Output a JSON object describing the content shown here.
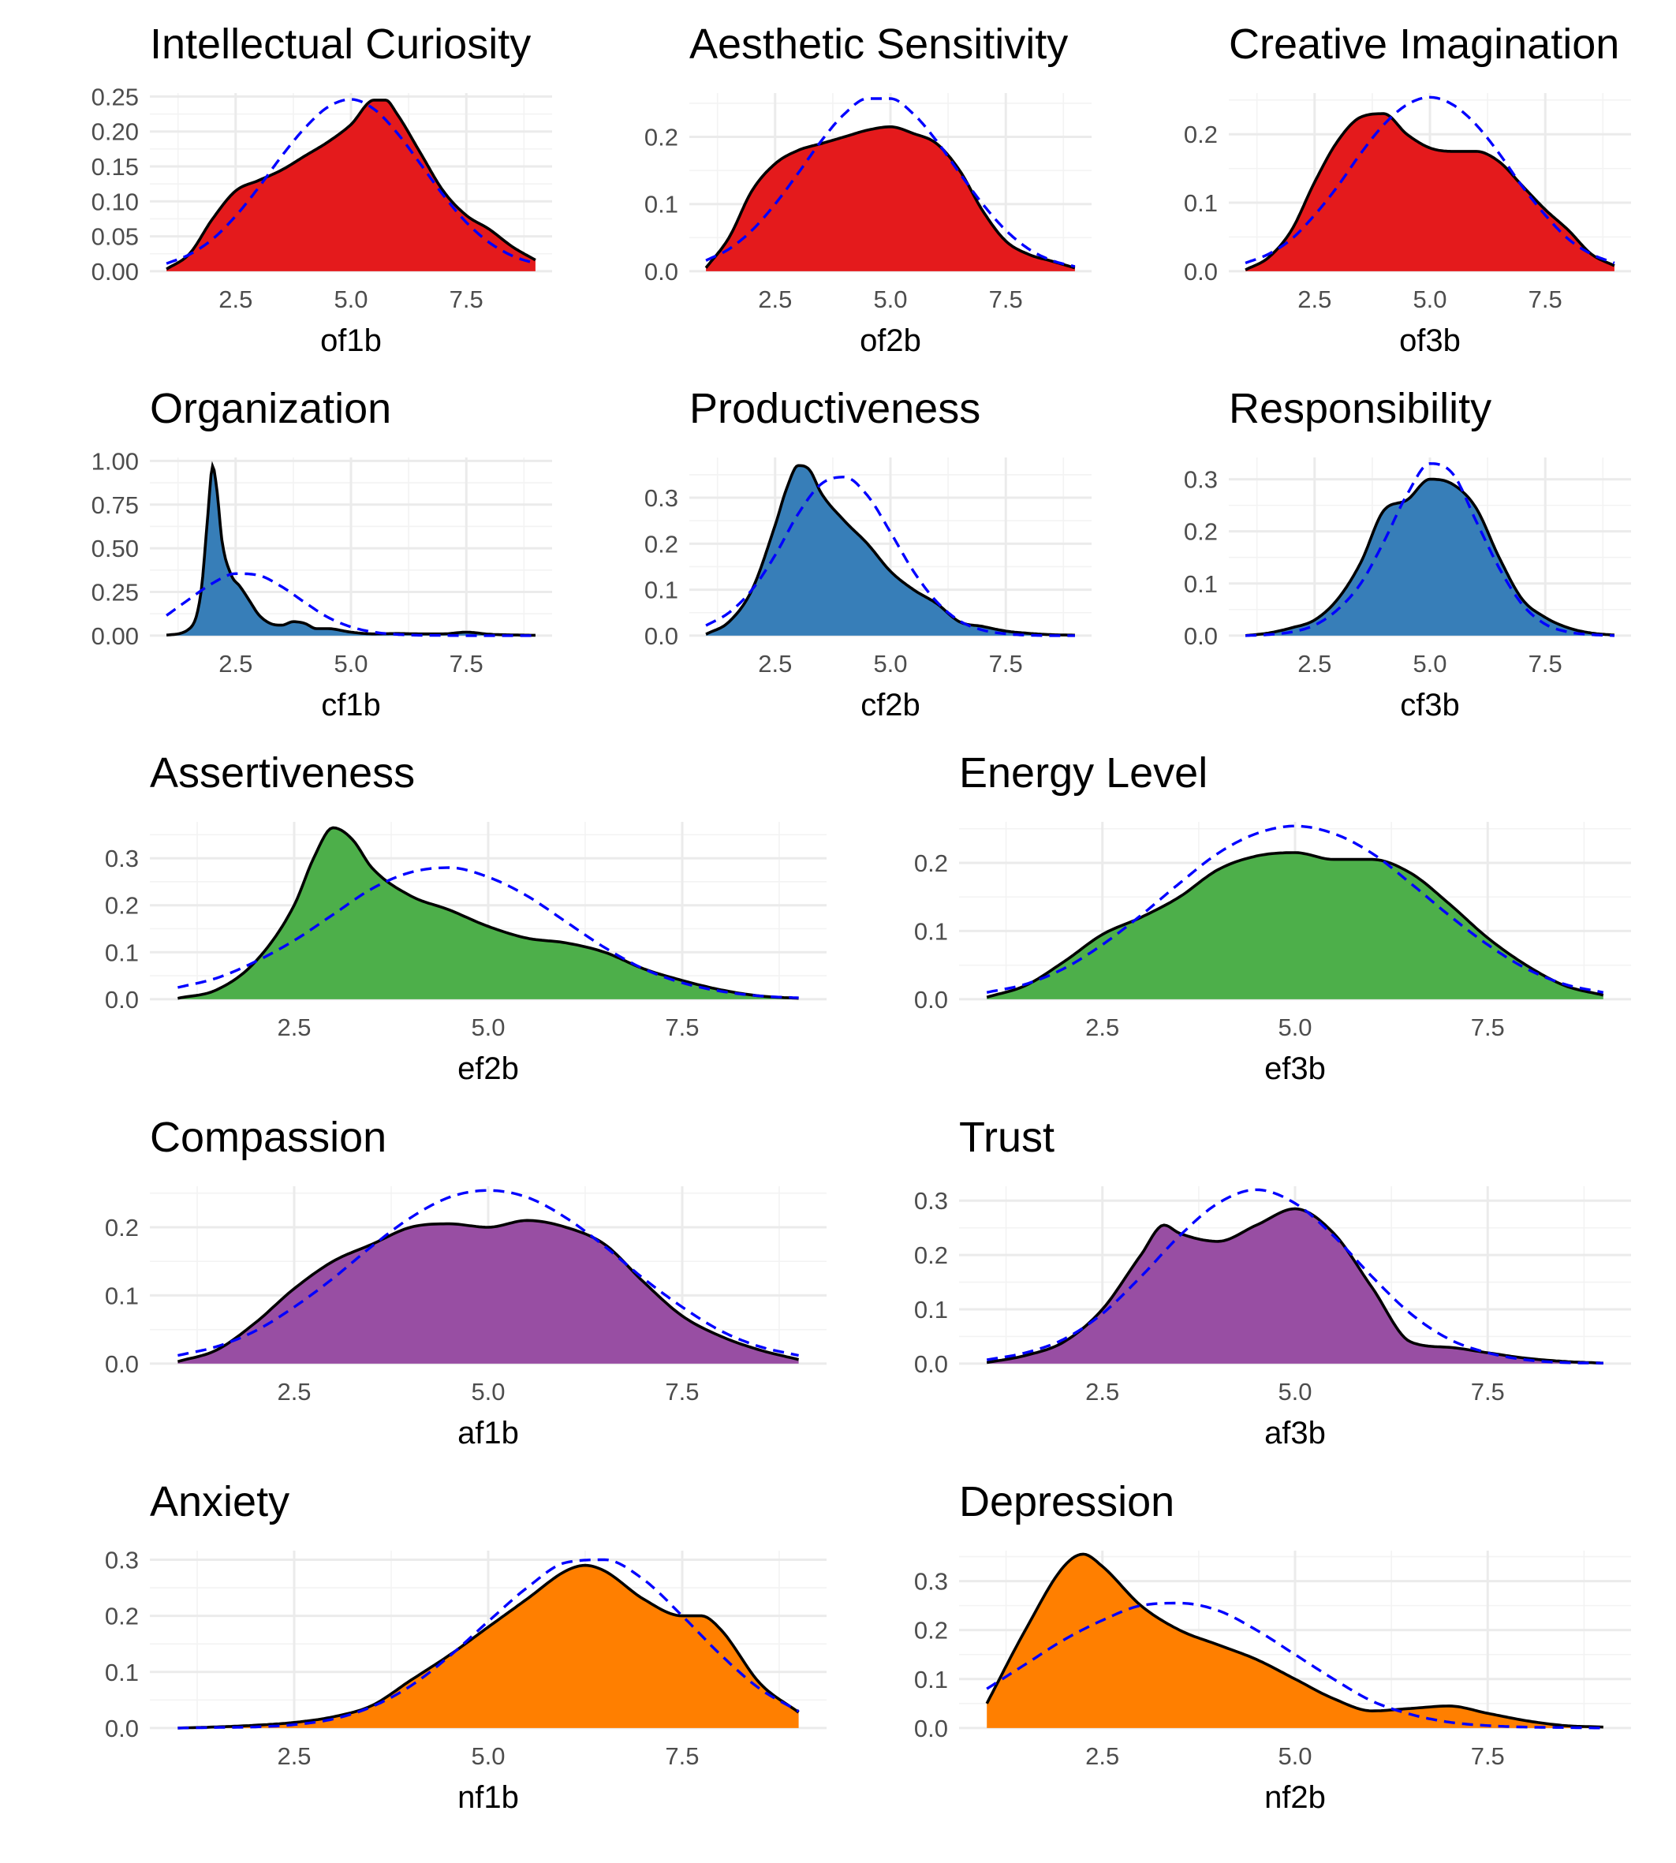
{
  "colors": {
    "openness": "#e41a1c",
    "conscientiousness": "#377eb8",
    "extraversion": "#4daf4a",
    "agreeableness": "#984ea3",
    "neuroticism": "#ff7f00",
    "density_line": "#000000",
    "normal_curve": "#0000ff"
  },
  "chart_data": [
    {
      "type": "area",
      "title": "Intellectual Curiosity",
      "xlabel": "of1b",
      "fill_color": "#e41a1c",
      "xlim": [
        1,
        9
      ],
      "ylim": [
        0,
        0.25
      ],
      "x_ticks": [
        "2.5",
        "5.0",
        "7.5"
      ],
      "y_ticks": [
        "0.00",
        "0.05",
        "0.10",
        "0.15",
        "0.20",
        "0.25"
      ],
      "density": {
        "x": [
          1,
          1.5,
          2,
          2.5,
          3,
          3.5,
          4,
          4.5,
          5,
          5.5,
          5.75,
          6,
          6.5,
          7,
          7.5,
          8,
          8.5,
          9
        ],
        "y": [
          0.003,
          0.025,
          0.075,
          0.115,
          0.13,
          0.145,
          0.165,
          0.185,
          0.21,
          0.245,
          0.245,
          0.225,
          0.17,
          0.115,
          0.08,
          0.06,
          0.035,
          0.016
        ]
      },
      "normal": {
        "x": [
          1,
          1.5,
          2,
          2.5,
          3,
          3.5,
          4,
          4.5,
          5,
          5.5,
          6,
          6.5,
          7,
          7.5,
          8,
          8.5,
          9
        ],
        "y": [
          0.011,
          0.024,
          0.046,
          0.079,
          0.12,
          0.165,
          0.205,
          0.235,
          0.246,
          0.232,
          0.198,
          0.154,
          0.109,
          0.07,
          0.041,
          0.022,
          0.011
        ]
      }
    },
    {
      "type": "area",
      "title": "Aesthetic Sensitivity",
      "xlabel": "of2b",
      "fill_color": "#e41a1c",
      "xlim": [
        1,
        9
      ],
      "ylim": [
        0,
        0.26
      ],
      "x_ticks": [
        "2.5",
        "5.0",
        "7.5"
      ],
      "y_ticks": [
        "0.0",
        "0.1",
        "0.2"
      ],
      "density": {
        "x": [
          1,
          1.5,
          2,
          2.5,
          3,
          3.5,
          4,
          4.5,
          5,
          5.5,
          6,
          6.5,
          7,
          7.5,
          8,
          8.5,
          9
        ],
        "y": [
          0.005,
          0.05,
          0.12,
          0.16,
          0.18,
          0.19,
          0.2,
          0.21,
          0.215,
          0.205,
          0.19,
          0.15,
          0.09,
          0.045,
          0.025,
          0.015,
          0.005
        ]
      },
      "normal": {
        "x": [
          1,
          1.5,
          2,
          2.5,
          3,
          3.5,
          4,
          4.5,
          5,
          5.5,
          6,
          6.5,
          7,
          7.5,
          8,
          8.5,
          9
        ],
        "y": [
          0.016,
          0.033,
          0.061,
          0.1,
          0.146,
          0.194,
          0.234,
          0.257,
          0.257,
          0.234,
          0.194,
          0.146,
          0.1,
          0.061,
          0.033,
          0.016,
          0.007
        ]
      }
    },
    {
      "type": "area",
      "title": "Creative Imagination",
      "xlabel": "of3b",
      "fill_color": "#e41a1c",
      "xlim": [
        1,
        9
      ],
      "ylim": [
        0,
        0.255
      ],
      "x_ticks": [
        "2.5",
        "5.0",
        "7.5"
      ],
      "y_ticks": [
        "0.0",
        "0.1",
        "0.2"
      ],
      "density": {
        "x": [
          1,
          1.5,
          2,
          2.5,
          3,
          3.5,
          4,
          4.5,
          5,
          5.5,
          6,
          6.5,
          7,
          7.5,
          8,
          8.5,
          9
        ],
        "y": [
          0.002,
          0.02,
          0.06,
          0.13,
          0.19,
          0.225,
          0.23,
          0.2,
          0.18,
          0.175,
          0.175,
          0.16,
          0.125,
          0.09,
          0.06,
          0.025,
          0.008
        ]
      },
      "normal": {
        "x": [
          1,
          1.5,
          2,
          2.5,
          3,
          3.5,
          4,
          4.5,
          5,
          5.5,
          6,
          6.5,
          7,
          7.5,
          8,
          8.5,
          9
        ],
        "y": [
          0.012,
          0.025,
          0.047,
          0.082,
          0.124,
          0.172,
          0.214,
          0.243,
          0.254,
          0.243,
          0.214,
          0.172,
          0.124,
          0.082,
          0.047,
          0.025,
          0.012
        ]
      }
    },
    {
      "type": "area",
      "title": "Organization",
      "xlabel": "cf1b",
      "fill_color": "#377eb8",
      "xlim": [
        1,
        9
      ],
      "ylim": [
        0,
        1.0
      ],
      "x_ticks": [
        "2.5",
        "5.0",
        "7.5"
      ],
      "y_ticks": [
        "0.00",
        "0.25",
        "0.50",
        "0.75",
        "1.00"
      ],
      "density": {
        "x": [
          1,
          1.5,
          1.75,
          1.9,
          2,
          2.1,
          2.2,
          2.4,
          2.6,
          2.8,
          3,
          3.25,
          3.5,
          3.75,
          4,
          4.25,
          4.5,
          5,
          5.5,
          6,
          6.5,
          7,
          7.5,
          8,
          8.5,
          9
        ],
        "y": [
          0.003,
          0.04,
          0.25,
          0.7,
          0.97,
          0.82,
          0.55,
          0.35,
          0.28,
          0.2,
          0.12,
          0.07,
          0.06,
          0.08,
          0.07,
          0.04,
          0.04,
          0.02,
          0.01,
          0.012,
          0.01,
          0.01,
          0.02,
          0.008,
          0.004,
          0.002
        ]
      },
      "normal": {
        "x": [
          1,
          1.5,
          2,
          2.5,
          3,
          3.5,
          4,
          4.5,
          5,
          5.5,
          6,
          6.5,
          7,
          7.5,
          8,
          8.5,
          9
        ],
        "y": [
          0.115,
          0.21,
          0.3,
          0.355,
          0.345,
          0.28,
          0.19,
          0.105,
          0.05,
          0.02,
          0.007,
          0.002,
          0.001,
          0,
          0,
          0,
          0
        ]
      }
    },
    {
      "type": "area",
      "title": "Productiveness",
      "xlabel": "cf2b",
      "fill_color": "#377eb8",
      "xlim": [
        1,
        9
      ],
      "ylim": [
        0,
        0.38
      ],
      "x_ticks": [
        "2.5",
        "5.0",
        "7.5"
      ],
      "y_ticks": [
        "0.0",
        "0.1",
        "0.2",
        "0.3"
      ],
      "density": {
        "x": [
          1,
          1.5,
          2,
          2.5,
          2.75,
          3,
          3.25,
          3.5,
          4,
          4.5,
          5,
          5.5,
          6,
          6.5,
          7,
          7.5,
          8,
          8.5,
          9
        ],
        "y": [
          0.003,
          0.03,
          0.1,
          0.24,
          0.32,
          0.37,
          0.36,
          0.31,
          0.25,
          0.2,
          0.14,
          0.1,
          0.07,
          0.03,
          0.02,
          0.01,
          0.005,
          0.002,
          0.001
        ]
      },
      "normal": {
        "x": [
          1,
          1.5,
          2,
          2.5,
          3,
          3.5,
          4,
          4.5,
          5,
          5.5,
          6,
          6.5,
          7,
          7.5,
          8,
          8.5,
          9
        ],
        "y": [
          0.022,
          0.05,
          0.1,
          0.175,
          0.265,
          0.33,
          0.345,
          0.305,
          0.225,
          0.14,
          0.074,
          0.032,
          0.012,
          0.004,
          0.001,
          0,
          0
        ]
      }
    },
    {
      "type": "area",
      "title": "Responsibility",
      "xlabel": "cf3b",
      "fill_color": "#377eb8",
      "xlim": [
        1,
        9
      ],
      "ylim": [
        0,
        0.335
      ],
      "x_ticks": [
        "2.5",
        "5.0",
        "7.5"
      ],
      "y_ticks": [
        "0.0",
        "0.1",
        "0.2",
        "0.3"
      ],
      "density": {
        "x": [
          1,
          1.5,
          2,
          2.5,
          3,
          3.5,
          4,
          4.5,
          5,
          5.5,
          6,
          6.5,
          7,
          7.5,
          8,
          8.5,
          9
        ],
        "y": [
          0.0,
          0.005,
          0.015,
          0.03,
          0.07,
          0.14,
          0.24,
          0.26,
          0.3,
          0.29,
          0.245,
          0.15,
          0.07,
          0.035,
          0.015,
          0.005,
          0.001
        ]
      },
      "normal": {
        "x": [
          1,
          1.5,
          2,
          2.5,
          3,
          3.5,
          4,
          4.5,
          5,
          5.5,
          6,
          6.5,
          7,
          7.5,
          8,
          8.5,
          9
        ],
        "y": [
          0.0,
          0.002,
          0.007,
          0.02,
          0.05,
          0.1,
          0.18,
          0.27,
          0.33,
          0.31,
          0.22,
          0.13,
          0.06,
          0.022,
          0.007,
          0.002,
          0.0
        ]
      }
    },
    {
      "type": "area",
      "title": "Assertiveness",
      "xlabel": "ef2b",
      "fill_color": "#4daf4a",
      "xlim": [
        1,
        9
      ],
      "ylim": [
        0,
        0.37
      ],
      "x_ticks": [
        "2.5",
        "5.0",
        "7.5"
      ],
      "y_ticks": [
        "0.0",
        "0.1",
        "0.2",
        "0.3"
      ],
      "density": {
        "x": [
          1,
          1.5,
          2,
          2.5,
          2.75,
          3,
          3.25,
          3.5,
          4,
          4.5,
          5,
          5.5,
          6,
          6.5,
          7,
          7.5,
          8,
          8.5,
          9
        ],
        "y": [
          0.002,
          0.02,
          0.08,
          0.2,
          0.3,
          0.365,
          0.34,
          0.28,
          0.22,
          0.19,
          0.155,
          0.13,
          0.12,
          0.1,
          0.065,
          0.04,
          0.02,
          0.007,
          0.002
        ]
      },
      "normal": {
        "x": [
          1,
          1.5,
          2,
          2.5,
          3,
          3.5,
          4,
          4.5,
          5,
          5.5,
          6,
          6.5,
          7,
          7.5,
          8,
          8.5,
          9
        ],
        "y": [
          0.025,
          0.045,
          0.08,
          0.125,
          0.18,
          0.235,
          0.27,
          0.28,
          0.26,
          0.22,
          0.165,
          0.11,
          0.065,
          0.035,
          0.017,
          0.007,
          0.003
        ]
      }
    },
    {
      "type": "area",
      "title": "Energy Level",
      "xlabel": "ef3b",
      "fill_color": "#4daf4a",
      "xlim": [
        1,
        9
      ],
      "ylim": [
        0,
        0.255
      ],
      "x_ticks": [
        "2.5",
        "5.0",
        "7.5"
      ],
      "y_ticks": [
        "0.0",
        "0.1",
        "0.2"
      ],
      "density": {
        "x": [
          1,
          1.5,
          2,
          2.5,
          3,
          3.5,
          4,
          4.5,
          5,
          5.5,
          6,
          6.5,
          7,
          7.5,
          8,
          8.5,
          9
        ],
        "y": [
          0.003,
          0.02,
          0.055,
          0.095,
          0.12,
          0.15,
          0.19,
          0.21,
          0.215,
          0.205,
          0.205,
          0.185,
          0.14,
          0.09,
          0.05,
          0.02,
          0.006
        ]
      },
      "normal": {
        "x": [
          1,
          1.5,
          2,
          2.5,
          3,
          3.5,
          4,
          4.5,
          5,
          5.5,
          6,
          6.5,
          7,
          7.5,
          8,
          8.5,
          9
        ],
        "y": [
          0.01,
          0.022,
          0.045,
          0.08,
          0.123,
          0.17,
          0.214,
          0.243,
          0.254,
          0.243,
          0.214,
          0.17,
          0.123,
          0.08,
          0.045,
          0.022,
          0.01
        ]
      }
    },
    {
      "type": "area",
      "title": "Compassion",
      "xlabel": "af1b",
      "fill_color": "#984ea3",
      "xlim": [
        1,
        9
      ],
      "ylim": [
        0,
        0.255
      ],
      "x_ticks": [
        "2.5",
        "5.0",
        "7.5"
      ],
      "y_ticks": [
        "0.0",
        "0.1",
        "0.2"
      ],
      "density": {
        "x": [
          1,
          1.5,
          2,
          2.5,
          3,
          3.5,
          4,
          4.5,
          5,
          5.5,
          6,
          6.5,
          7,
          7.5,
          8,
          8.5,
          9
        ],
        "y": [
          0.003,
          0.02,
          0.06,
          0.11,
          0.15,
          0.175,
          0.2,
          0.205,
          0.2,
          0.21,
          0.2,
          0.175,
          0.12,
          0.07,
          0.04,
          0.02,
          0.006
        ]
      },
      "normal": {
        "x": [
          1,
          1.5,
          2,
          2.5,
          3,
          3.5,
          4,
          4.5,
          5,
          5.5,
          6,
          6.5,
          7,
          7.5,
          8,
          8.5,
          9
        ],
        "y": [
          0.012,
          0.025,
          0.048,
          0.083,
          0.125,
          0.172,
          0.214,
          0.244,
          0.254,
          0.244,
          0.214,
          0.172,
          0.125,
          0.083,
          0.048,
          0.025,
          0.012
        ]
      }
    },
    {
      "type": "area",
      "title": "Trust",
      "xlabel": "af3b",
      "fill_color": "#984ea3",
      "xlim": [
        1,
        9
      ],
      "ylim": [
        0,
        0.32
      ],
      "x_ticks": [
        "2.5",
        "5.0",
        "7.5"
      ],
      "y_ticks": [
        "0.0",
        "0.1",
        "0.2",
        "0.3"
      ],
      "density": {
        "x": [
          1,
          1.5,
          2,
          2.5,
          3,
          3.3,
          3.5,
          4,
          4.5,
          5,
          5.5,
          6,
          6.5,
          7,
          7.5,
          8,
          8.5,
          9
        ],
        "y": [
          0.002,
          0.015,
          0.04,
          0.1,
          0.2,
          0.255,
          0.24,
          0.225,
          0.255,
          0.285,
          0.24,
          0.14,
          0.04,
          0.03,
          0.02,
          0.01,
          0.004,
          0.001
        ]
      },
      "normal": {
        "x": [
          1,
          1.5,
          2,
          2.5,
          3,
          3.5,
          4,
          4.5,
          5,
          5.5,
          6,
          6.5,
          7,
          7.5,
          8,
          8.5,
          9
        ],
        "y": [
          0.007,
          0.02,
          0.045,
          0.092,
          0.16,
          0.235,
          0.295,
          0.32,
          0.295,
          0.235,
          0.16,
          0.092,
          0.045,
          0.02,
          0.007,
          0.002,
          0.001
        ]
      }
    },
    {
      "type": "area",
      "title": "Anxiety",
      "xlabel": "nf1b",
      "fill_color": "#ff7f00",
      "xlim": [
        1,
        9
      ],
      "ylim": [
        0,
        0.31
      ],
      "x_ticks": [
        "2.5",
        "5.0",
        "7.5"
      ],
      "y_ticks": [
        "0.0",
        "0.1",
        "0.2",
        "0.3"
      ],
      "density": {
        "x": [
          1,
          1.5,
          2,
          2.5,
          3,
          3.5,
          4,
          4.5,
          5,
          5.5,
          6,
          6.25,
          6.5,
          7,
          7.5,
          7.75,
          8,
          8.5,
          9
        ],
        "y": [
          0.0,
          0.002,
          0.005,
          0.01,
          0.02,
          0.04,
          0.085,
          0.13,
          0.18,
          0.23,
          0.28,
          0.29,
          0.28,
          0.23,
          0.2,
          0.2,
          0.175,
          0.08,
          0.028
        ]
      },
      "normal": {
        "x": [
          1,
          1.5,
          2,
          2.5,
          3,
          3.5,
          4,
          4.5,
          5,
          5.5,
          6,
          6.5,
          7,
          7.5,
          8,
          8.5,
          9
        ],
        "y": [
          0.0,
          0.001,
          0.002,
          0.006,
          0.016,
          0.038,
          0.075,
          0.128,
          0.19,
          0.25,
          0.295,
          0.3,
          0.265,
          0.2,
          0.13,
          0.07,
          0.03
        ]
      }
    },
    {
      "type": "area",
      "title": "Depression",
      "xlabel": "nf2b",
      "fill_color": "#ff7f00",
      "xlim": [
        1,
        9
      ],
      "ylim": [
        0,
        0.355
      ],
      "x_ticks": [
        "2.5",
        "5.0",
        "7.5"
      ],
      "y_ticks": [
        "0.0",
        "0.1",
        "0.2",
        "0.3"
      ],
      "density": {
        "x": [
          1,
          1.5,
          2,
          2.25,
          2.5,
          3,
          3.5,
          4,
          4.5,
          5,
          5.5,
          6,
          6.5,
          7,
          7.5,
          8,
          8.5,
          9
        ],
        "y": [
          0.05,
          0.2,
          0.33,
          0.355,
          0.33,
          0.25,
          0.2,
          0.17,
          0.14,
          0.1,
          0.06,
          0.035,
          0.04,
          0.045,
          0.03,
          0.015,
          0.005,
          0.002
        ]
      },
      "normal": {
        "x": [
          1,
          1.5,
          2,
          2.5,
          3,
          3.5,
          4,
          4.5,
          5,
          5.5,
          6,
          6.5,
          7,
          7.5,
          8,
          8.5,
          9
        ],
        "y": [
          0.08,
          0.13,
          0.18,
          0.22,
          0.25,
          0.255,
          0.24,
          0.2,
          0.15,
          0.1,
          0.055,
          0.028,
          0.012,
          0.005,
          0.002,
          0.001,
          0.0
        ]
      }
    }
  ]
}
